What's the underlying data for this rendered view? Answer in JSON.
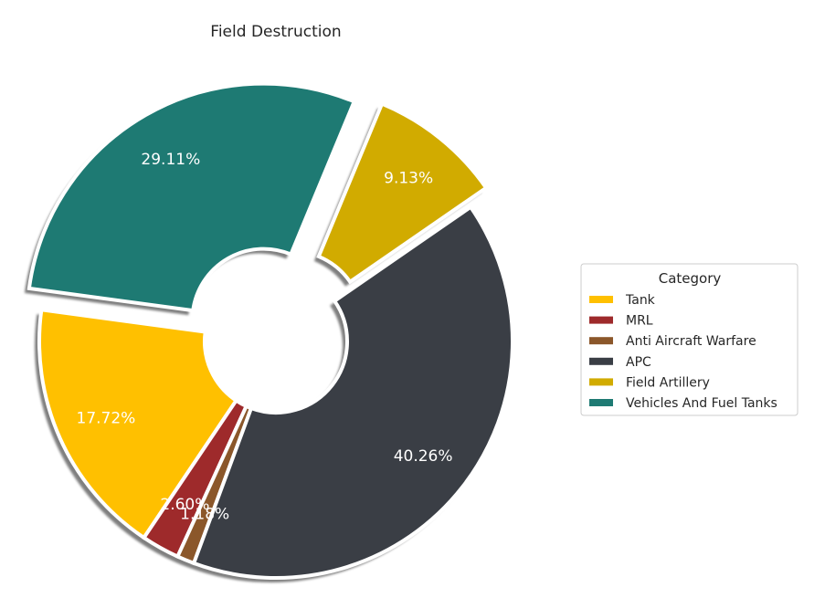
{
  "chart_data": {
    "type": "pie",
    "title": "Field Destruction",
    "legend_title": "Category",
    "legend_position": "right",
    "donut": true,
    "categories": [
      "Tank",
      "MRL",
      "Anti Aircraft Warfare",
      "APC",
      "Field Artillery",
      "Vehicles And Fuel Tanks"
    ],
    "values": [
      17.72,
      2.6,
      1.18,
      40.26,
      9.13,
      29.11
    ],
    "value_labels": [
      "17.72%",
      "2.60%",
      "1.18%",
      "40.26%",
      "9.13%",
      "29.11%"
    ],
    "colors": [
      "#ffc000",
      "#9e2a2b",
      "#8b572a",
      "#3a3e45",
      "#d1ab00",
      "#1e7a73"
    ],
    "exploded": [
      "Field Artillery",
      "Vehicles And Fuel Tanks"
    ]
  }
}
